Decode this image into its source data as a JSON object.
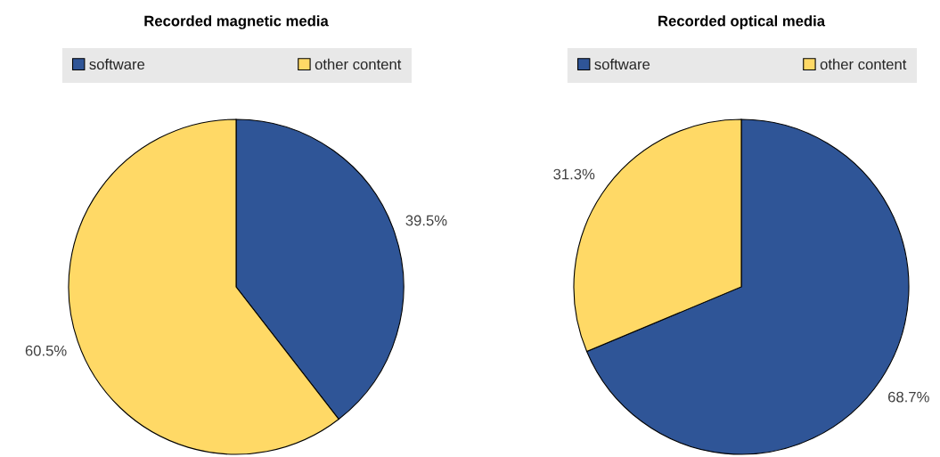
{
  "chart_data": [
    {
      "type": "pie",
      "title": "Recorded magnetic media",
      "categories": [
        "software",
        "other content"
      ],
      "values": [
        39.5,
        60.5
      ],
      "colors": [
        "#2f5597",
        "#ffd966"
      ],
      "value_labels": [
        "39.5%",
        "60.5%"
      ],
      "legend": "top"
    },
    {
      "type": "pie",
      "title": "Recorded optical media",
      "categories": [
        "software",
        "other content"
      ],
      "values": [
        68.7,
        31.3
      ],
      "colors": [
        "#2f5597",
        "#ffd966"
      ],
      "value_labels": [
        "68.7%",
        "31.3%"
      ],
      "legend": "top"
    }
  ]
}
